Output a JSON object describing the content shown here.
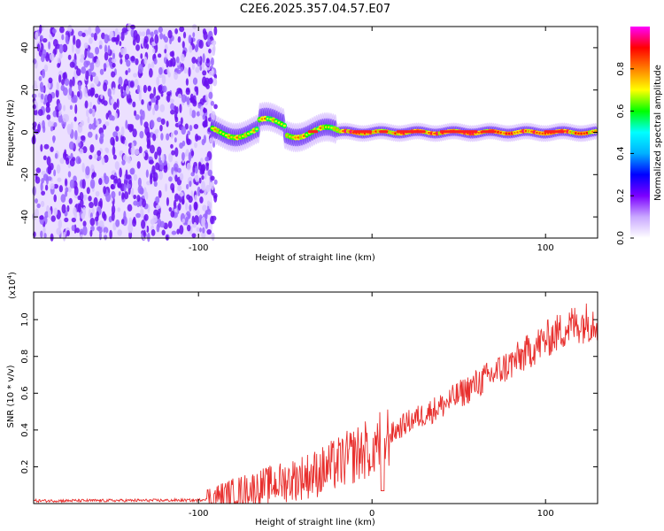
{
  "title": "C2E6.2025.357.04.57.E07",
  "chart_data": [
    {
      "type": "heatmap",
      "name": "spectrogram",
      "xlabel": "Height of straight line (km)",
      "ylabel": "Frequency (Hz)",
      "xlim": [
        -195,
        130
      ],
      "ylim": [
        -50,
        50
      ],
      "xticks": [
        -100,
        0,
        100
      ],
      "xtick_labels": [
        "-100",
        "",
        "100"
      ],
      "yticks": [
        -40,
        -20,
        0,
        20,
        40
      ],
      "ytick_labels": [
        "-40",
        "-20",
        "0",
        "20",
        "40"
      ],
      "noise_region_x": [
        -195,
        -92
      ],
      "signal_band_hz": [
        -5,
        6
      ],
      "colorbar": {
        "label": "Normalized spectral amplitude",
        "range": [
          0,
          1
        ],
        "ticks": [
          0.0,
          0.2,
          0.4,
          0.6,
          0.8
        ],
        "tick_labels": [
          "0.0",
          "0.2",
          "0.4",
          "0.6",
          "0.8"
        ],
        "colormap": [
          "#ffffff",
          "#7b00ff",
          "#0000ff",
          "#00ffff",
          "#00ff00",
          "#ffff00",
          "#ff8000",
          "#ff0000",
          "#ff00ff"
        ]
      }
    },
    {
      "type": "line",
      "name": "snr",
      "xlabel": "Height of straight line (km)",
      "ylabel": "SNR (10 * v/v)",
      "scale_label": "(x10",
      "scale_exp": "4",
      "xlim": [
        -195,
        130
      ],
      "ylim": [
        0,
        1.15
      ],
      "xticks": [
        -100,
        0,
        100
      ],
      "xtick_labels": [
        "-100",
        "0",
        "100"
      ],
      "yticks": [
        0.2,
        0.4,
        0.6,
        0.8,
        1.0
      ],
      "ytick_labels": [
        "0.2",
        "0.4",
        "0.6",
        "0.8",
        "1.0"
      ],
      "color": "#e8302e",
      "trend": {
        "x": [
          -195,
          -100,
          -88,
          -70,
          -50,
          -30,
          -15,
          0,
          10,
          20,
          40,
          60,
          80,
          100,
          115,
          130
        ],
        "y": [
          0.015,
          0.018,
          0.04,
          0.08,
          0.12,
          0.17,
          0.24,
          0.31,
          0.37,
          0.44,
          0.53,
          0.65,
          0.76,
          0.89,
          0.97,
          1.0
        ]
      }
    }
  ]
}
